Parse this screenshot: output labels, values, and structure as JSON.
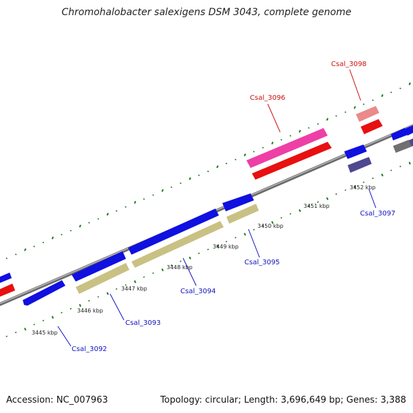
{
  "title": "Chromohalobacter salexigens DSM 3043, complete genome",
  "accession": "Accession: NC_007963",
  "summary": "Topology: circular; Length: 3,696,649 bp; Genes: 3,388",
  "ticks": [
    "3445 kbp",
    "3446 kbp",
    "3447 kbp",
    "3448 kbp",
    "3449 kbp",
    "3450 kbp",
    "3451 kbp",
    "3452 kbp"
  ],
  "genes": [
    {
      "label": "Csal_3092",
      "strand": "reverse",
      "color": "#1010dd"
    },
    {
      "label": "Csal_3093",
      "strand": "forward",
      "color": "#1010dd"
    },
    {
      "label": "Csal_3094",
      "strand": "forward",
      "color": "#1010dd"
    },
    {
      "label": "Csal_3095",
      "strand": "forward",
      "color": "#1010dd"
    },
    {
      "label": "Csal_3096",
      "strand": "forward",
      "color": "#dd1010"
    },
    {
      "label": "Csal_3097",
      "strand": "forward",
      "color": "#1010dd"
    },
    {
      "label": "Csal_3098",
      "strand": "forward",
      "color": "#dd1010"
    }
  ],
  "colors": {
    "cds_blue": "#1010e0",
    "cds_red": "#e81010",
    "cds_pink": "#ee3fa6",
    "cds_khaki": "#c9c184",
    "cds_salmon": "#ea8a8a",
    "cds_slate": "#4e4890",
    "cds_gray": "#707070",
    "tick_green": "#1a7a1a",
    "backbone": "#8a8a8a",
    "label_blue": "#1010c0",
    "label_red": "#cc1010"
  }
}
